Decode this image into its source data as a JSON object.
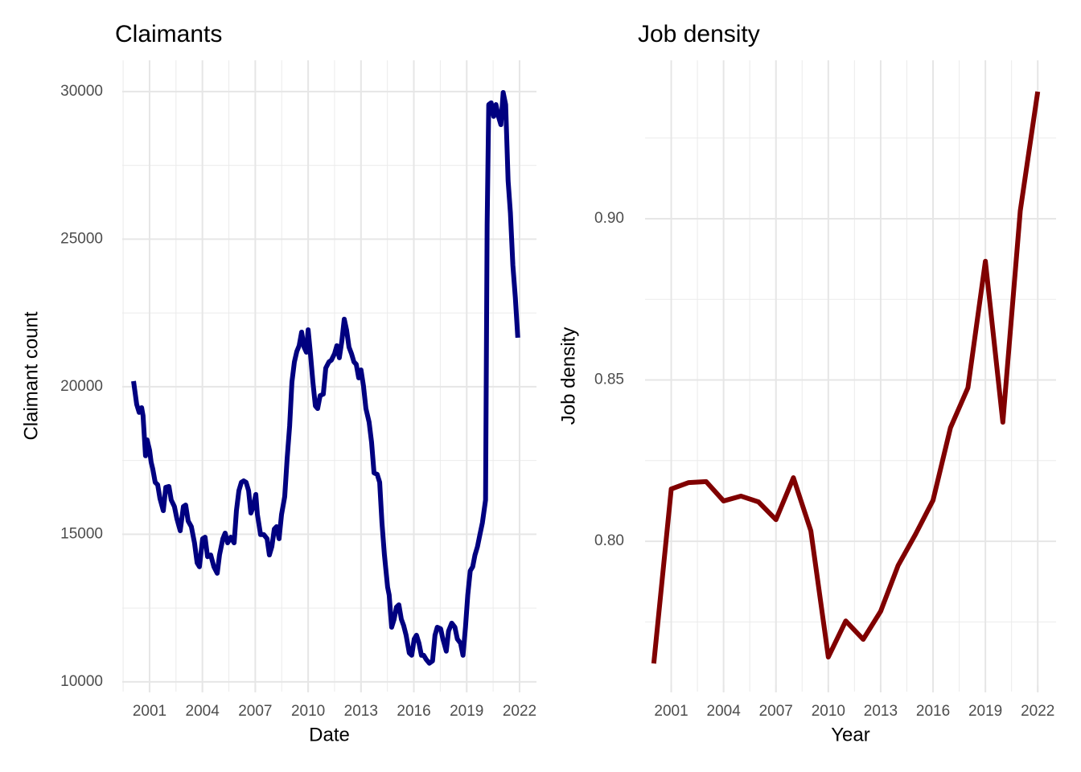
{
  "chart_data": [
    {
      "type": "line",
      "title": "Claimants",
      "x_label": "Date",
      "y_label": "Claimant count",
      "color": "#000080",
      "grid": true,
      "x": [
        2000.09,
        2000.27,
        2000.41,
        2000.55,
        2000.63,
        2000.77,
        2000.86,
        2001.0,
        2001.09,
        2001.18,
        2001.32,
        2001.46,
        2001.59,
        2001.78,
        2001.92,
        2002.1,
        2002.23,
        2002.41,
        2002.55,
        2002.74,
        2002.92,
        2003.05,
        2003.19,
        2003.37,
        2003.55,
        2003.7,
        2003.83,
        2004.01,
        2004.15,
        2004.29,
        2004.47,
        2004.65,
        2004.84,
        2004.97,
        2005.16,
        2005.29,
        2005.43,
        2005.61,
        2005.8,
        2005.93,
        2006.07,
        2006.21,
        2006.34,
        2006.48,
        2006.62,
        2006.75,
        2006.89,
        2007.03,
        2007.12,
        2007.3,
        2007.48,
        2007.67,
        2007.8,
        2007.94,
        2008.08,
        2008.21,
        2008.35,
        2008.49,
        2008.67,
        2008.81,
        2008.95,
        2009.08,
        2009.22,
        2009.36,
        2009.49,
        2009.63,
        2009.77,
        2009.9,
        2010.0,
        2010.13,
        2010.27,
        2010.41,
        2010.54,
        2010.68,
        2010.86,
        2011.0,
        2011.18,
        2011.32,
        2011.5,
        2011.63,
        2011.77,
        2011.91,
        2012.05,
        2012.18,
        2012.32,
        2012.46,
        2012.6,
        2012.73,
        2012.87,
        2013.0,
        2013.14,
        2013.28,
        2013.46,
        2013.6,
        2013.74,
        2013.92,
        2014.06,
        2014.19,
        2014.33,
        2014.51,
        2014.6,
        2014.74,
        2014.88,
        2015.01,
        2015.15,
        2015.29,
        2015.42,
        2015.56,
        2015.74,
        2015.88,
        2016.02,
        2016.15,
        2016.29,
        2016.43,
        2016.56,
        2016.7,
        2016.88,
        2017.06,
        2017.2,
        2017.33,
        2017.52,
        2017.65,
        2017.84,
        2017.97,
        2018.15,
        2018.33,
        2018.47,
        2018.65,
        2018.79,
        2018.93,
        2019.06,
        2019.2,
        2019.34,
        2019.47,
        2019.61,
        2019.75,
        2019.89,
        2020.07,
        2020.16,
        2020.25,
        2020.39,
        2020.53,
        2020.66,
        2020.8,
        2020.94,
        2021.07,
        2021.21,
        2021.35,
        2021.48,
        2021.62,
        2021.76,
        2021.9
      ],
      "values": [
        20190,
        19400,
        19130,
        19290,
        19020,
        17660,
        18200,
        17850,
        17440,
        17220,
        16760,
        16680,
        16210,
        15800,
        16590,
        16620,
        16160,
        15940,
        15530,
        15120,
        15940,
        15990,
        15450,
        15260,
        14710,
        14030,
        13900,
        14850,
        14900,
        14240,
        14300,
        13900,
        13680,
        14300,
        14850,
        15040,
        14710,
        14900,
        14710,
        15800,
        16480,
        16760,
        16810,
        16760,
        16480,
        15720,
        15940,
        16350,
        15670,
        14990,
        14990,
        14850,
        14300,
        14580,
        15180,
        15260,
        14850,
        15670,
        16270,
        17580,
        18670,
        20160,
        20840,
        21200,
        21390,
        21850,
        21340,
        21170,
        21930,
        21120,
        20160,
        19350,
        19260,
        19700,
        19750,
        20630,
        20840,
        20900,
        21120,
        21390,
        20980,
        21530,
        22290,
        21930,
        21340,
        21120,
        20840,
        20760,
        20300,
        20570,
        20030,
        19260,
        18800,
        18120,
        17080,
        17030,
        16760,
        15390,
        14300,
        13210,
        12940,
        11850,
        12120,
        12530,
        12610,
        12120,
        11910,
        11580,
        10980,
        10900,
        11450,
        11580,
        11310,
        10900,
        10900,
        10760,
        10630,
        10710,
        11580,
        11850,
        11800,
        11450,
        11040,
        11720,
        11990,
        11850,
        11450,
        11310,
        10900,
        11850,
        12940,
        13760,
        13900,
        14300,
        14580,
        14990,
        15390,
        16160,
        25480,
        29560,
        29620,
        29160,
        29560,
        29160,
        28880,
        29970,
        29560,
        26980,
        25890,
        24110,
        23020,
        21660
      ],
      "xlim": [
        1999.45,
        2022.96
      ],
      "ylim": [
        9670,
        31060
      ],
      "xticks": [
        2001,
        2004,
        2007,
        2010,
        2013,
        2016,
        2019,
        2022
      ],
      "yticks": [
        10000,
        15000,
        20000,
        25000,
        30000
      ]
    },
    {
      "type": "line",
      "title": "Job density",
      "x_label": "Year",
      "y_label": "Job density",
      "color": "#800000",
      "grid": true,
      "x": [
        2000,
        2001,
        2002,
        2003,
        2004,
        2005,
        2006,
        2007,
        2008,
        2009,
        2010,
        2011,
        2012,
        2013,
        2014,
        2015,
        2016,
        2017,
        2018,
        2019,
        2020,
        2021,
        2022
      ],
      "values": [
        0.7621,
        0.8162,
        0.8182,
        0.8185,
        0.8125,
        0.814,
        0.8122,
        0.8067,
        0.8197,
        0.8032,
        0.7641,
        0.7753,
        0.7696,
        0.7783,
        0.7925,
        0.8022,
        0.8127,
        0.8352,
        0.8476,
        0.8868,
        0.8369,
        0.9025,
        0.9394
      ],
      "xlim": [
        1999.5,
        2023.05
      ],
      "ylim": [
        0.7534,
        0.9491
      ],
      "xticks": [
        2001,
        2004,
        2007,
        2010,
        2013,
        2016,
        2019,
        2022
      ],
      "yticks": [
        {
          "value": 0.8,
          "label": "0.80"
        },
        0.85,
        {
          "value": 0.9,
          "label": "0.90"
        }
      ]
    }
  ]
}
